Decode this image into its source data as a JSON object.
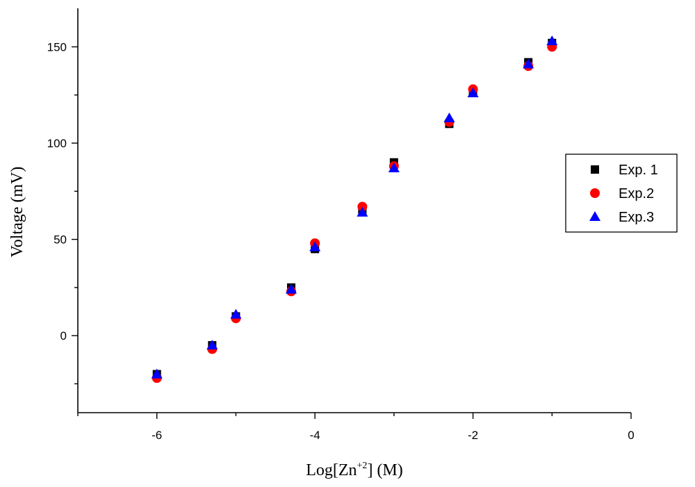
{
  "chart_data": {
    "type": "scatter",
    "xlabel": {
      "base": "Log[Zn",
      "sup": "+2",
      "suffix": "] (M)"
    },
    "ylabel": "Voltage (mV)",
    "xlim": [
      -7,
      0
    ],
    "ylim": [
      -40,
      170
    ],
    "xticks": [
      -6,
      -4,
      -2,
      0
    ],
    "yticks": [
      0,
      50,
      100,
      150
    ],
    "xtick_labels": [
      "-6",
      "-4",
      "-2",
      "0"
    ],
    "ytick_labels": [
      "0",
      "50",
      "100",
      "150"
    ],
    "legend_position": "right",
    "grid": false,
    "series": [
      {
        "name": "Exp. 1",
        "marker": "square",
        "color": "#000000",
        "x": [
          -6,
          -5.3,
          -5,
          -4.3,
          -4,
          -3.4,
          -3,
          -2.3,
          -2,
          -1.3,
          -1
        ],
        "y": [
          -20,
          -5,
          10,
          25,
          45,
          65,
          90,
          110,
          127,
          142,
          152
        ]
      },
      {
        "name": "Exp.2",
        "marker": "circle",
        "color": "#ff0000",
        "x": [
          -6,
          -5.3,
          -5,
          -4.3,
          -4,
          -3.4,
          -3,
          -2.3,
          -2,
          -1.3,
          -1
        ],
        "y": [
          -22,
          -7,
          9,
          23,
          48,
          67,
          88,
          111,
          128,
          140,
          150
        ]
      },
      {
        "name": "Exp.3",
        "marker": "triangle",
        "color": "#0000ff",
        "x": [
          -6,
          -5.3,
          -5,
          -4.3,
          -4,
          -3.4,
          -3,
          -2.3,
          -2,
          -1.3,
          -1
        ],
        "y": [
          -20,
          -5,
          11,
          24,
          46,
          64,
          87,
          113,
          126,
          141,
          153
        ]
      }
    ]
  }
}
